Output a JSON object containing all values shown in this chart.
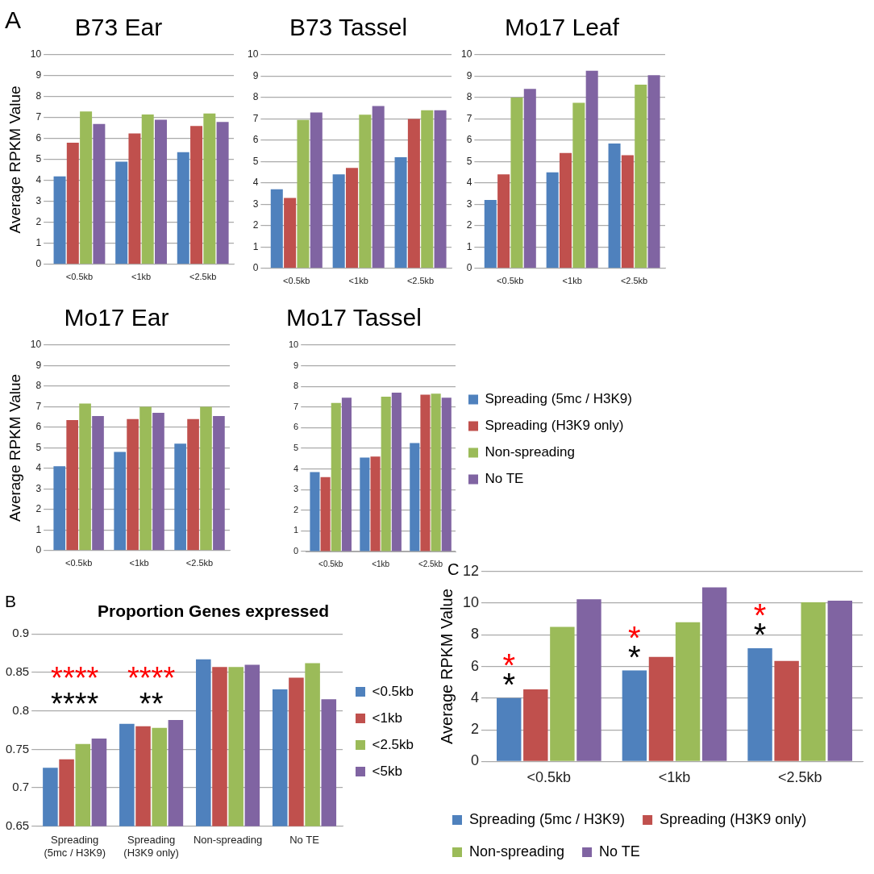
{
  "chart_data": [
    {
      "type": "bar",
      "title": "B73 Ear",
      "ylabel": "Average RPKM Value",
      "annotations": [
        "A"
      ],
      "categories": [
        "<0.5kb",
        "<1kb",
        "<2.5kb"
      ],
      "series": [
        {
          "color": "#4f81bd",
          "values": [
            4.2,
            4.9,
            5.35
          ]
        },
        {
          "color": "#c0504d",
          "values": [
            5.8,
            6.25,
            6.6
          ]
        },
        {
          "color": "#9bbb59",
          "values": [
            7.3,
            7.15,
            7.2
          ]
        },
        {
          "color": "#8064a2",
          "values": [
            6.7,
            6.9,
            6.8
          ]
        }
      ],
      "ylim": [
        0,
        10
      ],
      "yticks": [
        0,
        1,
        2,
        3,
        4,
        5,
        6,
        7,
        8,
        9,
        10
      ],
      "grid": "y",
      "legend": false
    },
    {
      "type": "bar",
      "title": "B73 Tassel",
      "categories": [
        "<0.5kb",
        "<1kb",
        "<2.5kb"
      ],
      "series": [
        {
          "color": "#4f81bd",
          "values": [
            3.7,
            4.4,
            5.2
          ]
        },
        {
          "color": "#c0504d",
          "values": [
            3.3,
            4.7,
            7.0
          ]
        },
        {
          "color": "#9bbb59",
          "values": [
            6.95,
            7.2,
            7.4
          ]
        },
        {
          "color": "#8064a2",
          "values": [
            7.3,
            7.6,
            7.4
          ]
        }
      ],
      "ylim": [
        0,
        10
      ],
      "yticks": [
        0,
        1,
        2,
        3,
        4,
        5,
        6,
        7,
        8,
        9,
        10
      ],
      "grid": "y",
      "legend": false
    },
    {
      "type": "bar",
      "title": "Mo17 Leaf",
      "categories": [
        "<0.5kb",
        "<1kb",
        "<2.5kb"
      ],
      "series": [
        {
          "color": "#4f81bd",
          "values": [
            3.2,
            4.5,
            5.85
          ]
        },
        {
          "color": "#c0504d",
          "values": [
            4.4,
            5.4,
            5.3
          ]
        },
        {
          "color": "#9bbb59",
          "values": [
            8.0,
            7.75,
            8.6
          ]
        },
        {
          "color": "#8064a2",
          "values": [
            8.4,
            9.25,
            9.05
          ]
        }
      ],
      "ylim": [
        0,
        10
      ],
      "yticks": [
        0,
        1,
        2,
        3,
        4,
        5,
        6,
        7,
        8,
        9,
        10
      ],
      "grid": "y",
      "legend": false
    },
    {
      "type": "bar",
      "title": "Mo17 Ear",
      "ylabel": "Average RPKM Value",
      "categories": [
        "<0.5kb",
        "<1kb",
        "<2.5kb"
      ],
      "series": [
        {
          "color": "#4f81bd",
          "values": [
            4.1,
            4.8,
            5.2
          ]
        },
        {
          "color": "#c0504d",
          "values": [
            6.35,
            6.4,
            6.4
          ]
        },
        {
          "color": "#9bbb59",
          "values": [
            7.15,
            7.0,
            7.0
          ]
        },
        {
          "color": "#8064a2",
          "values": [
            6.55,
            6.7,
            6.55
          ]
        }
      ],
      "ylim": [
        0,
        10
      ],
      "yticks": [
        0,
        1,
        2,
        3,
        4,
        5,
        6,
        7,
        8,
        9,
        10
      ],
      "grid": "y",
      "legend": false
    },
    {
      "type": "bar",
      "title": "Mo17 Tassel",
      "categories": [
        "<0.5kb",
        "<1kb",
        "<2.5kb"
      ],
      "series": [
        {
          "name": "Spreading (5mc / H3K9)",
          "color": "#4f81bd",
          "values": [
            3.85,
            4.55,
            5.25
          ]
        },
        {
          "name": "Spreading (H3K9 only)",
          "color": "#c0504d",
          "values": [
            3.6,
            4.6,
            7.6
          ]
        },
        {
          "name": "Non-spreading",
          "color": "#9bbb59",
          "values": [
            7.2,
            7.5,
            7.65
          ]
        },
        {
          "name": "No TE",
          "color": "#8064a2",
          "values": [
            7.45,
            7.7,
            7.45
          ]
        }
      ],
      "ylim": [
        0,
        10
      ],
      "yticks": [
        0,
        1,
        2,
        3,
        4,
        5,
        6,
        7,
        8,
        9,
        10
      ],
      "grid": "y",
      "legend": "right"
    },
    {
      "type": "bar",
      "title": "Proportion Genes expressed",
      "annotations": [
        "B",
        "****",
        "****",
        "****",
        "**"
      ],
      "categories": [
        "Spreading\n(5mc / H3K9)",
        "Spreading\n(H3K9 only)",
        "Non-spreading",
        "No TE"
      ],
      "series": [
        {
          "name": "<0.5kb",
          "color": "#4f81bd",
          "values": [
            0.726,
            0.783,
            0.867,
            0.828
          ]
        },
        {
          "name": "<1kb",
          "color": "#c0504d",
          "values": [
            0.737,
            0.78,
            0.857,
            0.843
          ]
        },
        {
          "name": "<2.5kb",
          "color": "#9bbb59",
          "values": [
            0.757,
            0.778,
            0.857,
            0.862
          ]
        },
        {
          "name": "<5kb",
          "color": "#8064a2",
          "values": [
            0.764,
            0.788,
            0.86,
            0.815
          ]
        }
      ],
      "ylim": [
        0.65,
        0.9
      ],
      "yticks": [
        0.65,
        0.7,
        0.75,
        0.8,
        0.85,
        0.9
      ],
      "grid": "y",
      "legend": "right"
    },
    {
      "type": "bar",
      "ylabel": "Average RPKM Value",
      "annotations": [
        "C",
        "*",
        "*",
        "*",
        "*",
        "*",
        "*"
      ],
      "categories": [
        "<0.5kb",
        "<1kb",
        "<2.5kb"
      ],
      "series": [
        {
          "name": "Spreading (5mc / H3K9)",
          "color": "#4f81bd",
          "values": [
            4.0,
            5.75,
            7.15
          ]
        },
        {
          "name": "Spreading (H3K9 only)",
          "color": "#c0504d",
          "values": [
            4.55,
            6.6,
            6.35
          ]
        },
        {
          "name": "Non-spreading",
          "color": "#9bbb59",
          "values": [
            8.5,
            8.8,
            10.05
          ]
        },
        {
          "name": "No TE",
          "color": "#8064a2",
          "values": [
            10.25,
            11.0,
            10.15
          ]
        }
      ],
      "ylim": [
        0,
        12
      ],
      "yticks": [
        0,
        2,
        4,
        6,
        8,
        10,
        12
      ],
      "grid": "y",
      "legend": "bottom"
    }
  ]
}
